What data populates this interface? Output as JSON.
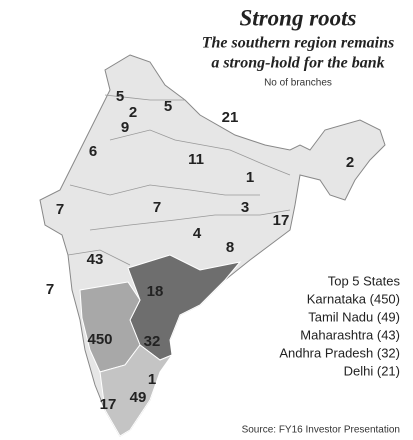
{
  "title": "Strong roots",
  "subtitle": [
    "The southern region remains",
    "a strong-hold for the bank"
  ],
  "note": "No of branches",
  "map_labels": [
    5,
    5,
    2,
    9,
    21,
    6,
    11,
    1,
    2,
    7,
    7,
    3,
    17,
    4,
    8,
    43,
    7,
    18,
    450,
    32,
    1,
    17,
    49
  ],
  "top_states": {
    "title": "Top 5 States",
    "items": [
      "Karnataka (450)",
      "Tamil Nadu (49)",
      "Maharashtra (43)",
      "Andhra Pradesh (32)",
      "Delhi (21)"
    ]
  },
  "source": "Source: FY16 Investor Presentation"
}
